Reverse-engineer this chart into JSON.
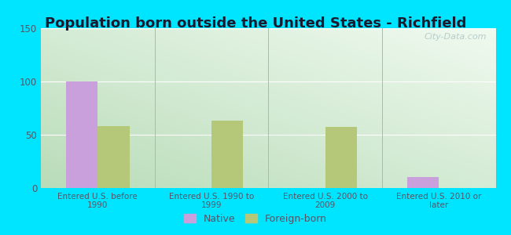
{
  "title": "Population born outside the United States - Richfield",
  "categories": [
    "Entered U.S. before\n1990",
    "Entered U.S. 1990 to\n1999",
    "Entered U.S. 2000 to\n2009",
    "Entered U.S. 2010 or\nlater"
  ],
  "native_values": [
    100,
    0,
    0,
    10
  ],
  "foreign_values": [
    58,
    63,
    57,
    0
  ],
  "native_color": "#c9a0dc",
  "foreign_color": "#b5c87a",
  "ylim": [
    0,
    150
  ],
  "yticks": [
    0,
    50,
    100,
    150
  ],
  "outer_bg": "#00e5ff",
  "title_fontsize": 13,
  "bar_width": 0.28,
  "watermark": "City-Data.com"
}
